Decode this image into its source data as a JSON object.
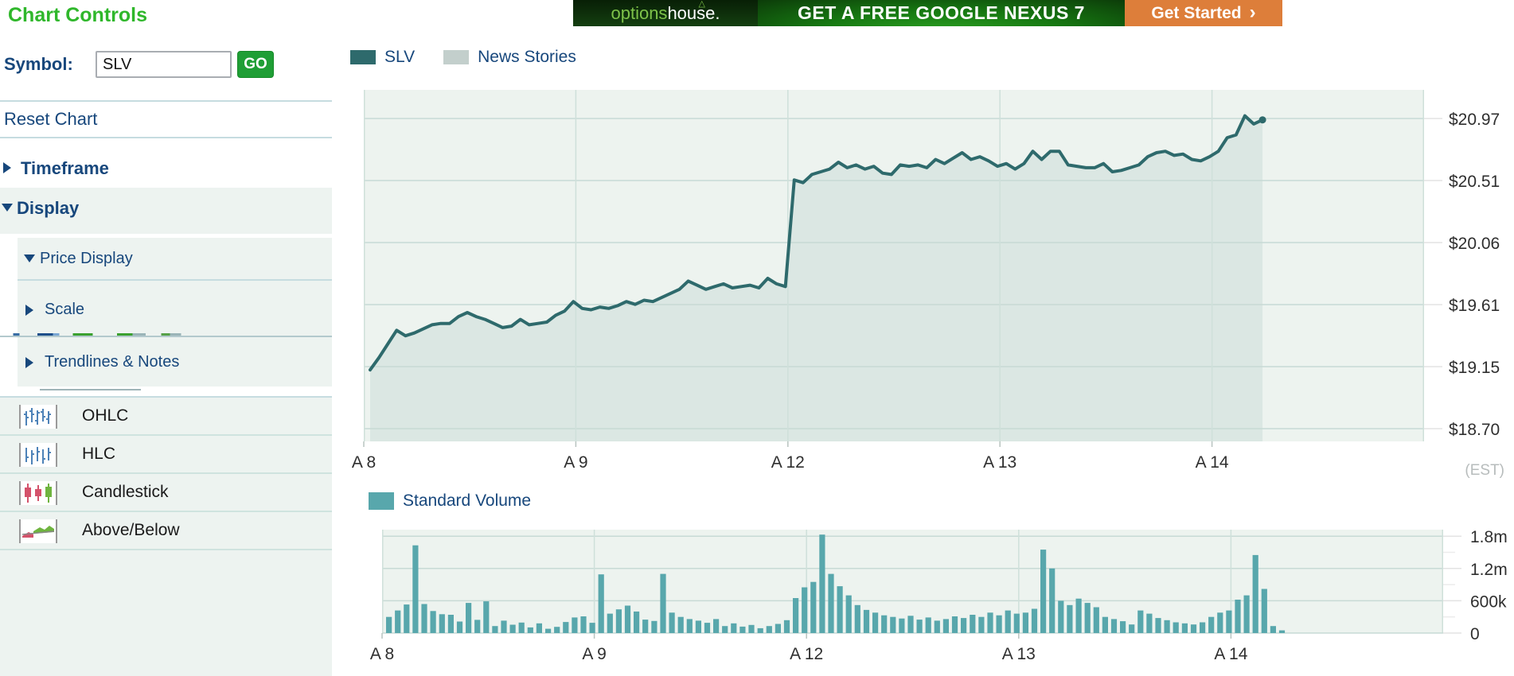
{
  "theme": {
    "navy": "#17477c",
    "green_title": "#2fb72b",
    "go_green": "#1f9e35",
    "line": "#2e6a6c",
    "area_fill": "rgba(46,106,108,0.09)",
    "plot_bg": "#edf3ef",
    "grid_h": "#c7dad5",
    "grid_v": "#cfe0da",
    "bars": "#58a7ac",
    "axis_text": "#2f2f2f",
    "est_gray": "#b7bcbc",
    "banner_green": "#177a12",
    "banner_orange": "#dd7e3a"
  },
  "sidebar": {
    "title": "Chart Controls",
    "symbol_label": "Symbol:",
    "symbol_value": "SLV",
    "go_label": "GO",
    "reset_label": "Reset Chart",
    "sections": {
      "timeframe": "Timeframe",
      "display": "Display",
      "price_display": "Price Display",
      "scale": "Scale",
      "trendlines": "Trendlines & Notes"
    },
    "chart_types": [
      {
        "label": "OHLC",
        "icon": "ohlc-icon"
      },
      {
        "label": "HLC",
        "icon": "hlc-icon"
      },
      {
        "label": "Candlestick",
        "icon": "candlestick-icon"
      },
      {
        "label": "Above/Below",
        "icon": "above-below-icon"
      }
    ]
  },
  "banner": {
    "brand_options": "options",
    "brand_house": "house.",
    "roof_glyph": "△",
    "headline": "GET A FREE GOOGLE NEXUS 7",
    "cta": "Get Started",
    "cta_arrow": "›"
  },
  "price_chart": {
    "legend": [
      {
        "label": "SLV",
        "color": "#2e6a6c"
      },
      {
        "label": "News Stories",
        "color": "#c3cfcc"
      }
    ],
    "chart_data": {
      "type": "line",
      "symbol": "SLV",
      "categories": [
        "A 8",
        "A 9",
        "A 12",
        "A 13",
        "A 14"
      ],
      "points_per_day": 24,
      "values": [
        19.13,
        19.22,
        19.32,
        19.42,
        19.38,
        19.4,
        19.43,
        19.46,
        19.47,
        19.47,
        19.52,
        19.55,
        19.52,
        19.5,
        19.47,
        19.44,
        19.45,
        19.5,
        19.46,
        19.47,
        19.48,
        19.53,
        19.56,
        19.63,
        19.58,
        19.57,
        19.59,
        19.58,
        19.6,
        19.63,
        19.61,
        19.64,
        19.63,
        19.66,
        19.69,
        19.72,
        19.78,
        19.75,
        19.72,
        19.74,
        19.76,
        19.73,
        19.74,
        19.75,
        19.73,
        19.8,
        19.76,
        19.74,
        20.52,
        20.5,
        20.56,
        20.58,
        20.6,
        20.65,
        20.61,
        20.63,
        20.6,
        20.62,
        20.57,
        20.56,
        20.63,
        20.62,
        20.63,
        20.61,
        20.67,
        20.64,
        20.68,
        20.72,
        20.67,
        20.69,
        20.66,
        20.62,
        20.64,
        20.6,
        20.64,
        20.73,
        20.67,
        20.73,
        20.73,
        20.63,
        20.62,
        20.61,
        20.61,
        20.64,
        20.58,
        20.59,
        20.61,
        20.63,
        20.69,
        20.72,
        20.73,
        20.7,
        20.71,
        20.67,
        20.66,
        20.69,
        20.73,
        20.83,
        20.85,
        20.99,
        20.93,
        20.96
      ],
      "ytick_labels": [
        "$20.97",
        "$20.51",
        "$20.06",
        "$19.61",
        "$19.15",
        "$18.70"
      ],
      "ytick_values": [
        20.97,
        20.51,
        20.06,
        19.61,
        19.15,
        18.7
      ],
      "tick_step": 0.454,
      "ylim": [
        18.7,
        20.97
      ],
      "timezone_label": "(EST)",
      "grid": true,
      "legend_position": "top-left"
    }
  },
  "volume_chart": {
    "legend": [
      {
        "label": "Standard Volume",
        "color": "#58a7ac"
      }
    ],
    "chart_data": {
      "type": "bar",
      "categories": [
        "A 8",
        "A 9",
        "A 12",
        "A 13",
        "A 14"
      ],
      "points_per_day": 24,
      "values_thousands": [
        300,
        420,
        530,
        1630,
        540,
        410,
        350,
        340,
        215,
        560,
        245,
        590,
        130,
        230,
        155,
        195,
        105,
        180,
        80,
        115,
        205,
        290,
        310,
        190,
        1090,
        360,
        440,
        510,
        400,
        250,
        225,
        1100,
        380,
        300,
        260,
        230,
        190,
        260,
        130,
        180,
        120,
        150,
        90,
        130,
        170,
        240,
        650,
        850,
        950,
        1830,
        1100,
        870,
        700,
        520,
        430,
        380,
        330,
        300,
        270,
        320,
        250,
        290,
        230,
        260,
        310,
        280,
        340,
        300,
        380,
        330,
        420,
        360,
        380,
        450,
        1550,
        1200,
        600,
        520,
        640,
        560,
        480,
        300,
        260,
        220,
        160,
        420,
        360,
        280,
        240,
        200,
        180,
        160,
        200,
        300,
        380,
        420,
        620,
        700,
        1450,
        820,
        130,
        50
      ],
      "ytick_labels": [
        "1.8m",
        "1.2m",
        "600k",
        "0"
      ],
      "ytick_values_thousands": [
        1800,
        1200,
        600,
        0
      ],
      "ylim_thousands": [
        0,
        1800
      ],
      "grid": true,
      "legend_position": "top-left"
    }
  }
}
